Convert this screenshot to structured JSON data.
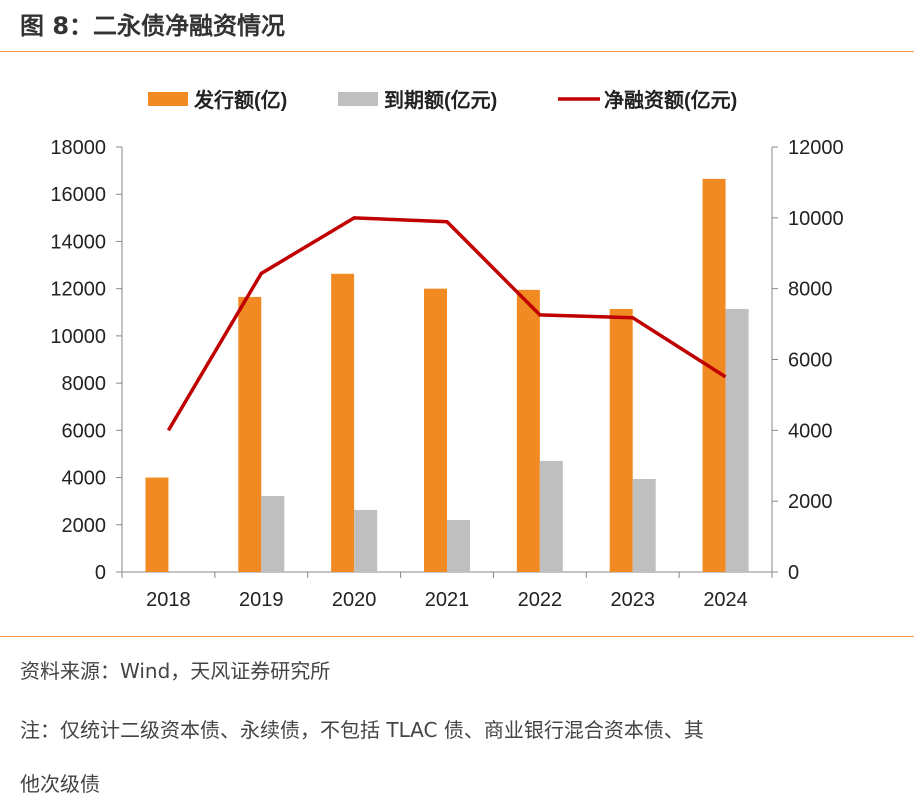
{
  "title": "图 8：二永债净融资情况",
  "footer": {
    "source": "资料来源：Wind，天风证券研究所",
    "note1": "注：仅统计二级资本债、永续债，不包括 TLAC 债、商业银行混合资本债、其",
    "note2": "他次级债"
  },
  "colors": {
    "accent": "#F0A050",
    "issue": "#F28A24",
    "mature": "#BFBFBF",
    "net": "#C00000"
  },
  "chart_data": {
    "type": "bar+line",
    "categories": [
      "2018",
      "2019",
      "2020",
      "2021",
      "2022",
      "2023",
      "2024"
    ],
    "series": [
      {
        "name": "发行额(亿)",
        "type": "bar",
        "axis": "left",
        "values": [
          4000,
          11650,
          12630,
          12000,
          11950,
          11140,
          16650
        ]
      },
      {
        "name": "到期额(亿元)",
        "type": "bar",
        "axis": "left",
        "values": [
          0,
          3220,
          2630,
          2200,
          4700,
          3940,
          11140
        ]
      },
      {
        "name": "净融资额(亿元)",
        "type": "line",
        "axis": "right",
        "values": [
          4000,
          8430,
          10000,
          9890,
          7260,
          7180,
          5510
        ]
      }
    ],
    "ylim_left": [
      0,
      18000
    ],
    "yticks_left": [
      "0",
      "2000",
      "4000",
      "6000",
      "8000",
      "10000",
      "12000",
      "14000",
      "16000",
      "18000"
    ],
    "ylim_right": [
      0,
      12000
    ],
    "yticks_right": [
      "0",
      "2000",
      "4000",
      "6000",
      "8000",
      "10000",
      "12000"
    ],
    "legend": "top",
    "grid": false
  }
}
